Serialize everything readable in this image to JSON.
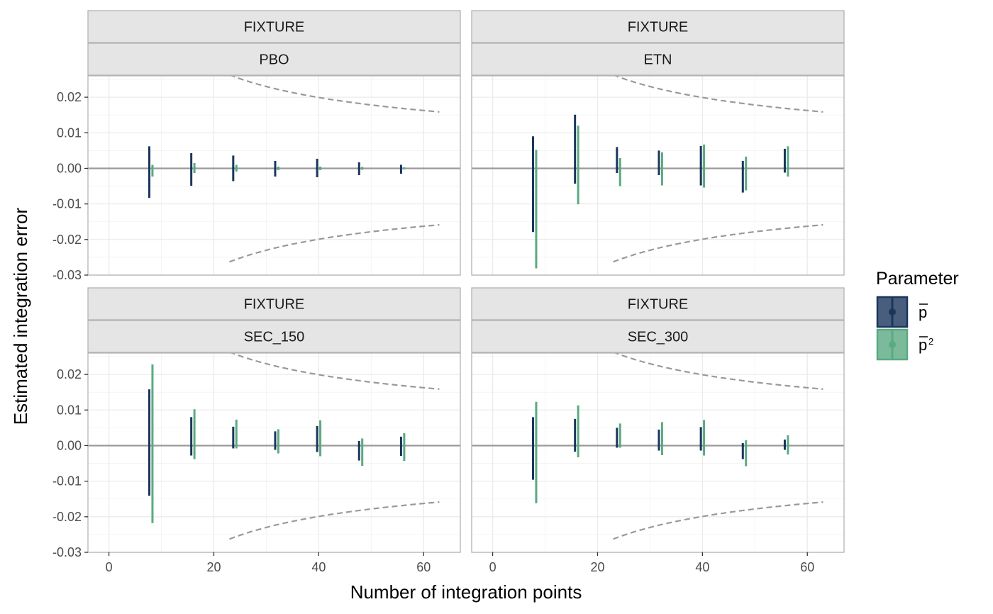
{
  "chart_data": {
    "type": "errorbar",
    "xlabel": "Number of integration points",
    "ylabel": "Estimated integration error",
    "xlim": [
      -4,
      67
    ],
    "ylim": [
      -0.03,
      0.026
    ],
    "x_ticks": [
      0,
      20,
      40,
      60
    ],
    "x_tick_labels": [
      "0",
      "20",
      "40",
      "60"
    ],
    "y_ticks": [
      -0.03,
      -0.02,
      -0.01,
      0.0,
      0.01,
      0.02
    ],
    "y_tick_labels": [
      "-0.03",
      "-0.02",
      "-0.01",
      "0.00",
      "0.01",
      "0.02"
    ],
    "grid": true,
    "legend": {
      "title": "Parameter",
      "placement": "right",
      "entries": [
        {
          "label": "p",
          "color": "#1b365d"
        },
        {
          "label": "p",
          "superscript": "2",
          "color": "#5aaa82"
        }
      ]
    },
    "reference_bound": {
      "style": "dashed",
      "color": "#999999",
      "constant": 0.126
    },
    "facets": [
      {
        "strip_top": "FIXTURE",
        "strip_bottom": "PBO",
        "series": [
          {
            "color": "#1b365d",
            "x": [
              8,
              16,
              24,
              32,
              40,
              48,
              56
            ],
            "lo": [
              -0.0083,
              -0.0049,
              -0.0036,
              -0.0023,
              -0.0025,
              -0.0019,
              -0.0015
            ],
            "hi": [
              0.0062,
              0.0043,
              0.0036,
              0.0021,
              0.0027,
              0.0017,
              0.001
            ]
          },
          {
            "color": "#5aaa82",
            "x": [
              8,
              16,
              24,
              32,
              40,
              48,
              56
            ],
            "lo": [
              -0.0023,
              -0.0013,
              -0.0009,
              -0.0005,
              -0.0005,
              -0.0004,
              -0.0003
            ],
            "hi": [
              0.001,
              0.0015,
              0.001,
              0.0005,
              0.0005,
              0.0004,
              0.0002
            ]
          }
        ]
      },
      {
        "strip_top": "FIXTURE",
        "strip_bottom": "ETN",
        "series": [
          {
            "color": "#1b365d",
            "x": [
              8,
              16,
              24,
              32,
              40,
              48,
              56
            ],
            "lo": [
              -0.0179,
              -0.0043,
              -0.0013,
              -0.0019,
              -0.0048,
              -0.0068,
              -0.0012
            ],
            "hi": [
              0.009,
              0.0151,
              0.006,
              0.005,
              0.0063,
              0.0021,
              0.0055
            ]
          },
          {
            "color": "#5aaa82",
            "x": [
              8,
              16,
              24,
              32,
              40,
              48,
              56
            ],
            "lo": [
              -0.0281,
              -0.0101,
              -0.005,
              -0.0048,
              -0.0054,
              -0.0062,
              -0.0023
            ],
            "hi": [
              0.0052,
              0.012,
              0.0029,
              0.0045,
              0.0067,
              0.0033,
              0.0062
            ]
          }
        ]
      },
      {
        "strip_top": "FIXTURE",
        "strip_bottom": "SEC_150",
        "series": [
          {
            "color": "#1b365d",
            "x": [
              8,
              16,
              24,
              32,
              40,
              48,
              56
            ],
            "lo": [
              -0.0141,
              -0.0028,
              -0.0008,
              -0.0012,
              -0.0018,
              -0.0042,
              -0.0029
            ],
            "hi": [
              0.0158,
              0.008,
              0.0053,
              0.004,
              0.0055,
              0.0013,
              0.0025
            ]
          },
          {
            "color": "#5aaa82",
            "x": [
              8,
              16,
              24,
              32,
              40,
              48,
              56
            ],
            "lo": [
              -0.0218,
              -0.0038,
              -0.0008,
              -0.0022,
              -0.003,
              -0.0057,
              -0.0043
            ],
            "hi": [
              0.0228,
              0.0102,
              0.0073,
              0.0046,
              0.0071,
              0.002,
              0.0035
            ]
          }
        ]
      },
      {
        "strip_top": "FIXTURE",
        "strip_bottom": "SEC_300",
        "series": [
          {
            "color": "#1b365d",
            "x": [
              8,
              16,
              24,
              32,
              40,
              48,
              56
            ],
            "lo": [
              -0.0096,
              -0.0017,
              -0.0006,
              -0.0014,
              -0.0014,
              -0.0038,
              -0.0012
            ],
            "hi": [
              0.008,
              0.0075,
              0.005,
              0.0045,
              0.0052,
              0.0007,
              0.0017
            ]
          },
          {
            "color": "#5aaa82",
            "x": [
              8,
              16,
              24,
              32,
              40,
              48,
              56
            ],
            "lo": [
              -0.0162,
              -0.0033,
              -0.0006,
              -0.0027,
              -0.0028,
              -0.0058,
              -0.0025
            ],
            "hi": [
              0.0123,
              0.0113,
              0.0062,
              0.0066,
              0.0072,
              0.0015,
              0.0029
            ]
          }
        ]
      }
    ]
  }
}
